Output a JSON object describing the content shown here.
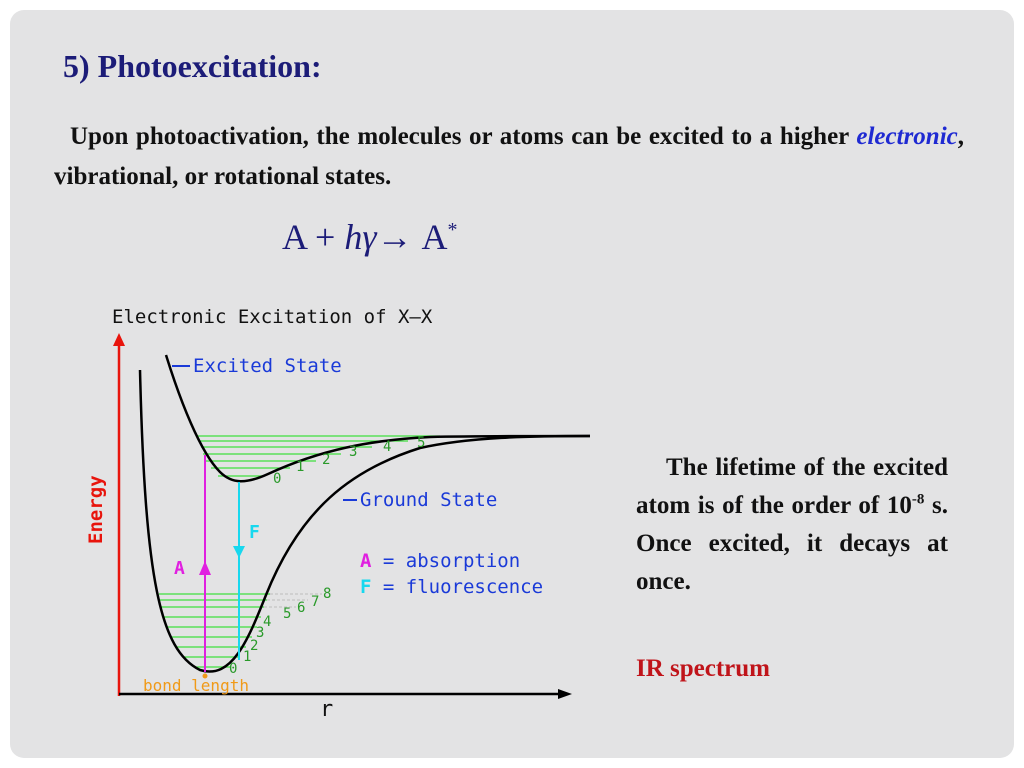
{
  "slide": {
    "title": "5) Photoexcitation:",
    "intro_before": "Upon photoactivation, the molecules or atoms can be excited to a higher ",
    "intro_emph": "electronic",
    "intro_after": ", vibrational, or rotational states.",
    "equation": {
      "lhs": "A + ",
      "photon": "hγ",
      "arrow": "→",
      "product": "A",
      "superscript": "*"
    },
    "lifetime_before": "The lifetime of the excited atom is of the order of 10",
    "lifetime_exponent": "-8",
    "lifetime_after": " s. Once excited, it decays at once.",
    "ir_link": "IR spectrum"
  },
  "diagram": {
    "title": "Electronic Excitation of  X—X",
    "y_axis_label": "Energy",
    "x_axis_label": "r",
    "excited_state_label": "Excited State",
    "ground_state_label": "Ground State",
    "bond_length_label": "bond length",
    "absorption_marker": "A",
    "fluorescence_marker": "F",
    "legend": {
      "absorption_key": "A",
      "absorption_text": " = absorption",
      "fluorescence_key": "F",
      "fluorescence_text": " = fluorescence"
    },
    "excited_levels": [
      "0",
      "1",
      "2",
      "3",
      "4",
      "5"
    ],
    "ground_levels": [
      "0",
      "1",
      "2",
      "3",
      "4",
      "5",
      "6",
      "7",
      "8"
    ],
    "colors": {
      "axis": "#e8140c",
      "absorption": "#e020e0",
      "fluorescence": "#18d8ee",
      "levels": "#3ee03e",
      "labels": "#1a3ad8",
      "bond_length": "#f09a18",
      "curve": "#000000"
    }
  }
}
